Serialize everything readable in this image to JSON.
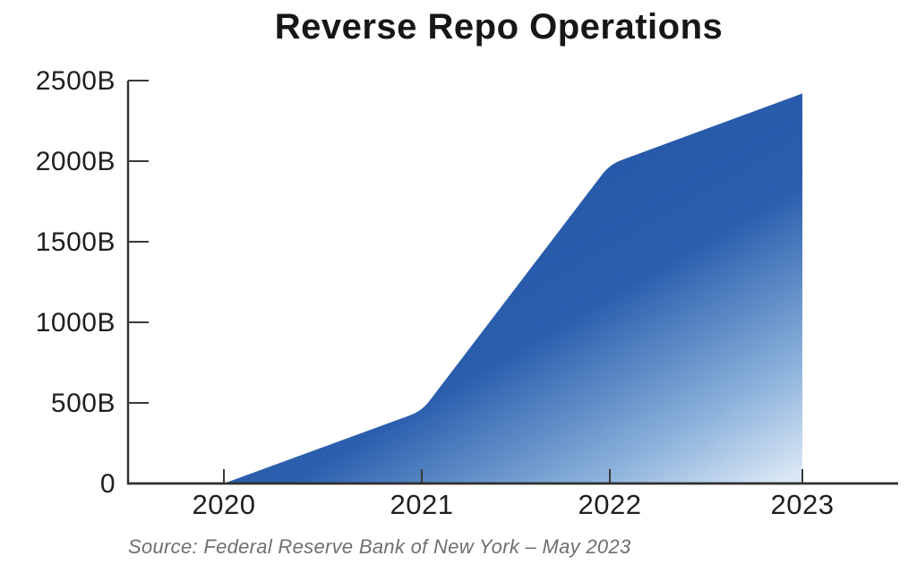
{
  "page": {
    "title": "Reverse Repo Operations",
    "source_caption": "Source: Federal Reserve Bank of New York – May 2023"
  },
  "chart_data": {
    "type": "area",
    "title": "Reverse Repo Operations",
    "categories": [
      "2020",
      "2021",
      "2022",
      "2023"
    ],
    "values": [
      0,
      450,
      1980,
      2420
    ],
    "value_suffix": "B",
    "xlabel": "",
    "ylabel": "",
    "ylim": [
      0,
      2500
    ],
    "ytick_values": [
      0,
      500,
      1000,
      1500,
      2000,
      2500
    ],
    "ytick_labels": [
      "0",
      "500B",
      "1000B",
      "1500B",
      "2000B",
      "2500B"
    ],
    "grid": false,
    "legend": "none",
    "tick_direction": "inward",
    "annotation": "Source: Federal Reserve Bank of New York – May 2023",
    "colors": {
      "gradient_stop_1": "#1d4f9f",
      "gradient_stop_2": "#2b5fae",
      "gradient_stop_3": "#8db3dc",
      "gradient_stop_4": "#d9e6f4",
      "axis": "#2f2f2f",
      "label_text": "#1f1f1f",
      "source_text": "#6f6f6f"
    }
  }
}
